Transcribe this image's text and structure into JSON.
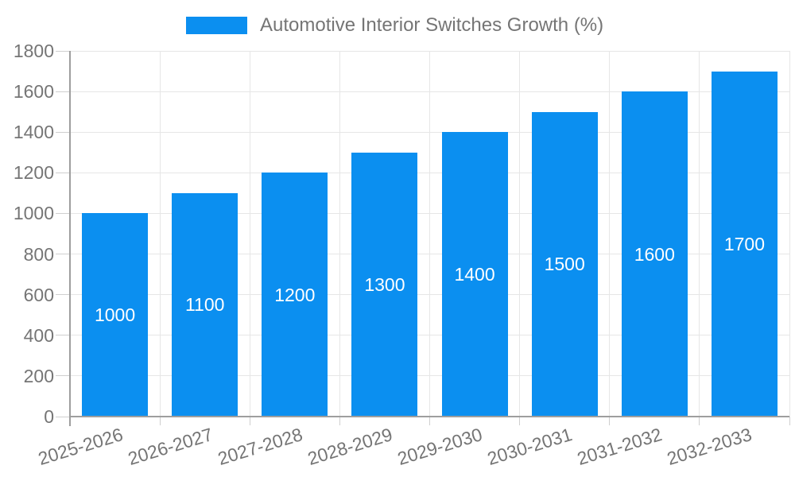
{
  "chart_data": {
    "type": "bar",
    "title": "Automotive Interior Switches Growth (%)",
    "legend_position": "top",
    "categories": [
      "2025-2026",
      "2026-2027",
      "2027-2028",
      "2028-2029",
      "2029-2030",
      "2030-2031",
      "2031-2032",
      "2032-2033"
    ],
    "values": [
      1000,
      1100,
      1200,
      1300,
      1400,
      1500,
      1600,
      1700
    ],
    "data_labels": [
      "1000",
      "1100",
      "1200",
      "1300",
      "1400",
      "1500",
      "1600",
      "1700"
    ],
    "xlabel": "",
    "ylabel": "",
    "ylim": [
      0,
      1800
    ],
    "yticks": [
      0,
      200,
      400,
      600,
      800,
      1000,
      1200,
      1400,
      1600,
      1800
    ],
    "grid": true,
    "colors": {
      "bar": "#0b8ff0",
      "axis": "#9e9e9e",
      "gridline": "#e6e6e6",
      "tick": "#cfcfcf",
      "tick_text": "#757575",
      "legend_text": "#757575",
      "data_label_text": "#ffffff",
      "background": "#ffffff"
    }
  }
}
